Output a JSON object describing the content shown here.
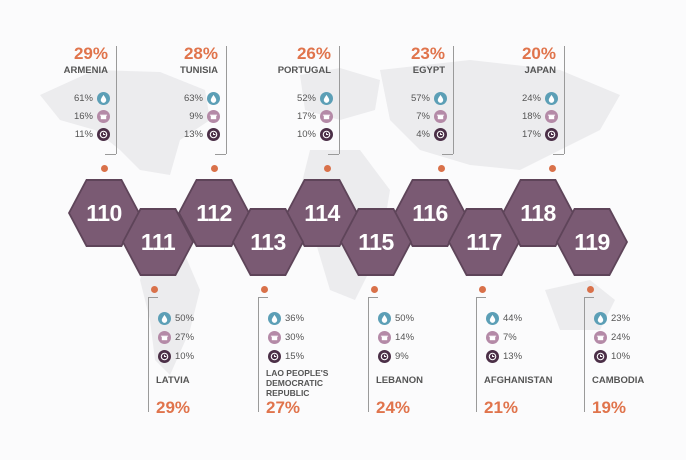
{
  "colors": {
    "hex_fill": "#7a5a73",
    "accent": "#e0744c",
    "icon_blue": "#5c9fb6",
    "icon_pink": "#b48aa7",
    "icon_dark": "#4b2f47"
  },
  "icons": [
    "water-drop-person-icon",
    "cooking-pot-icon",
    "clock-icon"
  ],
  "top": [
    {
      "rank": "110",
      "country": "ARMENIA",
      "pct": "29%",
      "stats": [
        "61%",
        "16%",
        "11%"
      ]
    },
    {
      "rank": "112",
      "country": "TUNISIA",
      "pct": "28%",
      "stats": [
        "63%",
        "9%",
        "13%"
      ]
    },
    {
      "rank": "114",
      "country": "PORTUGAL",
      "pct": "26%",
      "stats": [
        "52%",
        "17%",
        "10%"
      ]
    },
    {
      "rank": "116",
      "country": "EGYPT",
      "pct": "23%",
      "stats": [
        "57%",
        "7%",
        "4%"
      ]
    },
    {
      "rank": "118",
      "country": "JAPAN",
      "pct": "20%",
      "stats": [
        "24%",
        "18%",
        "17%"
      ]
    }
  ],
  "bottom": [
    {
      "rank": "111",
      "country": "LATVIA",
      "pct": "29%",
      "stats": [
        "50%",
        "27%",
        "10%"
      ]
    },
    {
      "rank": "113",
      "country": "LAO PEOPLE'S DEMOCRATIC REPUBLIC",
      "pct": "27%",
      "stats": [
        "36%",
        "30%",
        "15%"
      ]
    },
    {
      "rank": "115",
      "country": "LEBANON",
      "pct": "24%",
      "stats": [
        "50%",
        "14%",
        "9%"
      ]
    },
    {
      "rank": "117",
      "country": "AFGHANISTAN",
      "pct": "21%",
      "stats": [
        "44%",
        "7%",
        "13%"
      ]
    },
    {
      "rank": "119",
      "country": "CAMBODIA",
      "pct": "19%",
      "stats": [
        "23%",
        "24%",
        "10%"
      ]
    }
  ]
}
